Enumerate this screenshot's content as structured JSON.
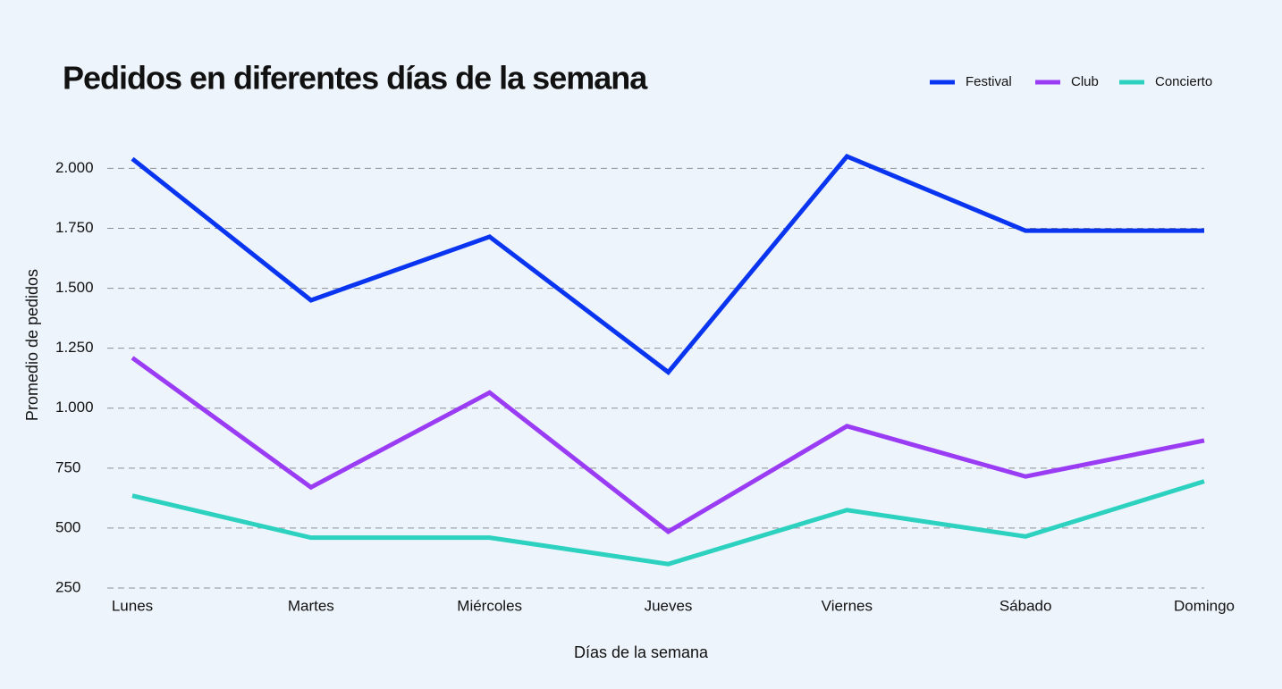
{
  "chart_data": {
    "type": "line",
    "title": "Pedidos en diferentes días de la semana",
    "x_label": "Días de la semana",
    "y_label": "Promedio de pedidos",
    "categories": [
      "Lunes",
      "Martes",
      "Miércoles",
      "Jueves",
      "Viernes",
      "Sábado",
      "Domingo"
    ],
    "series": [
      {
        "name": "Festival",
        "color": "#0a35f0",
        "values": [
          2040,
          1450,
          1715,
          1150,
          2050,
          1740,
          1740
        ]
      },
      {
        "name": "Club",
        "color": "#9b3cf5",
        "values": [
          1210,
          670,
          1065,
          485,
          925,
          715,
          865
        ]
      },
      {
        "name": "Concierto",
        "color": "#2dd1bf",
        "values": [
          635,
          460,
          460,
          350,
          575,
          465,
          695
        ]
      }
    ],
    "ylim": [
      250,
      2050
    ],
    "yticks": [
      250,
      500,
      750,
      {
        "value": 1000,
        "label": "1.000"
      },
      {
        "value": 1250,
        "label": "1.250"
      },
      {
        "value": 1500,
        "label": "1.500"
      },
      {
        "value": 1750,
        "label": "1.750"
      },
      {
        "value": 2000,
        "label": "2.000"
      }
    ],
    "grid": true,
    "legend": "top-right"
  }
}
